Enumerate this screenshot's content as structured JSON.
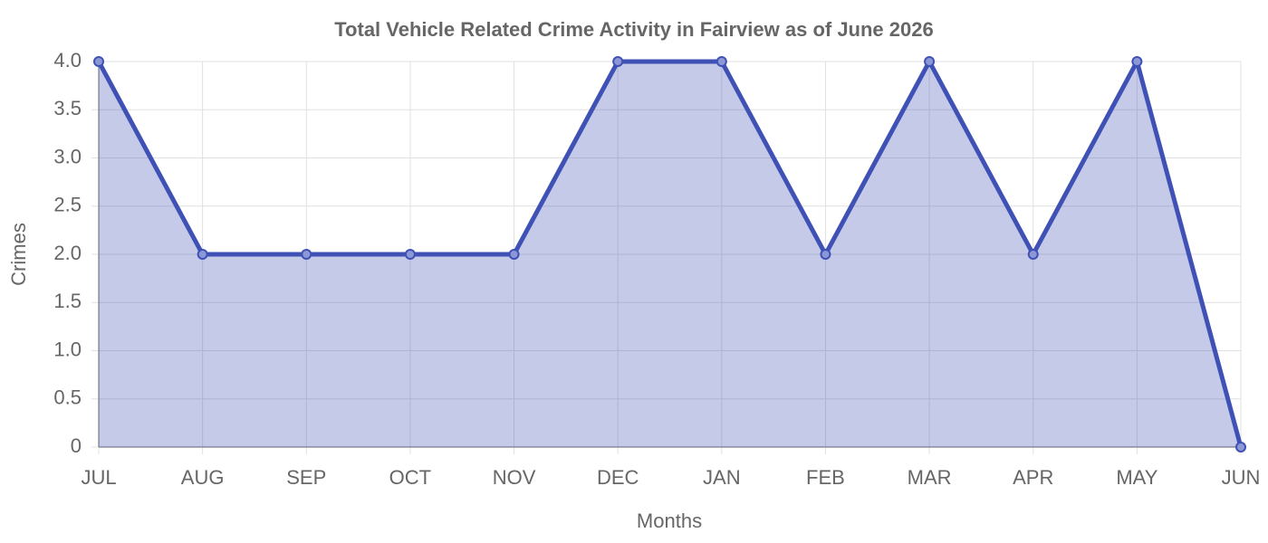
{
  "chart_data": {
    "type": "area",
    "title": "Total Vehicle Related Crime Activity in Fairview as of June 2026",
    "x_label": "Months",
    "y_label": "Crimes",
    "categories": [
      "JUL",
      "AUG",
      "SEP",
      "OCT",
      "NOV",
      "DEC",
      "JAN",
      "FEB",
      "MAR",
      "APR",
      "MAY",
      "JUN"
    ],
    "series": [
      {
        "name": "Crimes",
        "color": "#3f51b5",
        "values": [
          4,
          2,
          2,
          2,
          2,
          4,
          4,
          2,
          4,
          2,
          4,
          0
        ]
      }
    ],
    "ylim": [
      0,
      4
    ],
    "yticks": [
      0,
      0.5,
      {
        "value": 1,
        "label": "1.0"
      },
      1.5,
      {
        "value": 2,
        "label": "2.0"
      },
      2.5,
      {
        "value": 3,
        "label": "3.0"
      },
      3.5,
      {
        "value": 4,
        "label": "4.0"
      }
    ],
    "grid": true
  }
}
